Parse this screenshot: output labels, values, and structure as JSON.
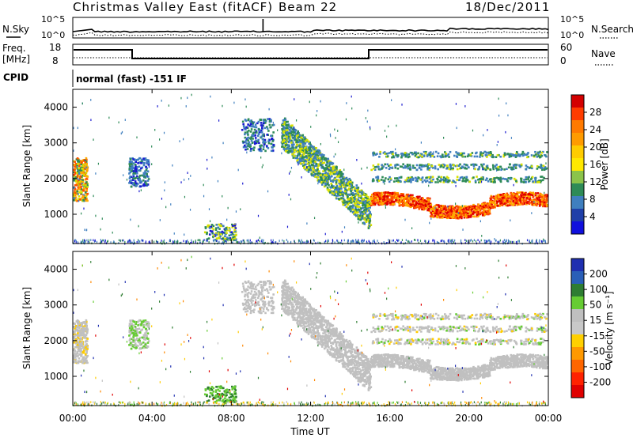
{
  "header": {
    "title": "Christmas Valley East (fitACF)",
    "beam": "Beam 22",
    "date": "18/Dec/2011"
  },
  "panels": {
    "sky_noise": {
      "left_label": "N.Sky",
      "right_label": "N.Search",
      "left_ticks": [
        "10^5",
        "10^0"
      ],
      "right_ticks": [
        "10^5",
        "10^0"
      ]
    },
    "frequency": {
      "left_label_1": "Freq.",
      "left_label_2": "[MHz]",
      "right_label": "Nave",
      "left_ticks": [
        "18",
        "8"
      ],
      "right_ticks": [
        "60",
        "0"
      ]
    },
    "cpid": {
      "label": "CPID",
      "text": "normal (fast) -151 IF"
    }
  },
  "colorbars": {
    "power": {
      "title": "Power [dB]",
      "ticks": [
        "28",
        "24",
        "20",
        "16",
        "12",
        "8",
        "4"
      ],
      "colors": [
        "#d30000",
        "#ff3c00",
        "#ff7a00",
        "#ff9b00",
        "#ffcc00",
        "#ffe800",
        "#8bc34a",
        "#2e8b57",
        "#3f7fbf",
        "#1f3fa8",
        "#1010dd"
      ]
    },
    "velocity": {
      "title": "Velocity [m s⁻¹]",
      "ticks": [
        "200",
        "100",
        "50",
        "15",
        "-15",
        "-50",
        "-100",
        "-200"
      ],
      "colors": [
        "#1f2fb0",
        "#2a5fb8",
        "#2e7d32",
        "#66cc33",
        "#bfbfbf",
        "#c8c8c8",
        "#ffd000",
        "#ff9900",
        "#ff6600",
        "#ff2200",
        "#e00000"
      ]
    }
  },
  "chart_data": [
    {
      "type": "heatmap",
      "name": "power",
      "ylabel": "Slant Range [km]",
      "yticks": [
        1000,
        2000,
        3000,
        4000
      ],
      "ylim": [
        180,
        4500
      ],
      "xlim": [
        0,
        24
      ],
      "clim": [
        0,
        30
      ]
    },
    {
      "type": "heatmap",
      "name": "velocity",
      "ylabel": "Slant Range [km]",
      "yticks": [
        1000,
        2000,
        3000,
        4000
      ],
      "ylim": [
        180,
        4500
      ],
      "xlim": [
        0,
        24
      ],
      "clim": [
        -250,
        250
      ]
    }
  ],
  "xaxis": {
    "label": "Time UT",
    "ticks": [
      "00:00",
      "04:00",
      "08:00",
      "12:00",
      "16:00",
      "20:00",
      "00:00"
    ]
  }
}
